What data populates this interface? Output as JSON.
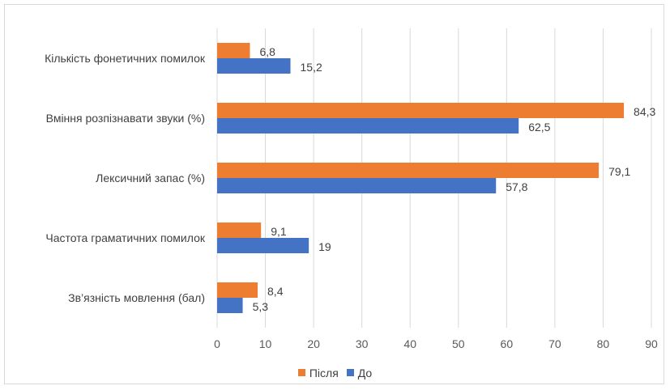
{
  "chart_data": {
    "type": "bar",
    "orientation": "horizontal",
    "categories": [
      "Кількість фонетичних помилок",
      "Вміння розпізнавати звуки (%)",
      "Лексичний запас (%)",
      "Частота граматичних помилок",
      "Зв’язність мовлення (бал)"
    ],
    "series": [
      {
        "name": "Після",
        "color": "#ed7d31",
        "values": [
          6.8,
          84.3,
          79.1,
          9.1,
          8.4
        ],
        "labels": [
          "6,8",
          "84,3",
          "79,1",
          "9,1",
          "8,4"
        ]
      },
      {
        "name": "До",
        "color": "#4472c4",
        "values": [
          15.2,
          62.5,
          57.8,
          19,
          5.3
        ],
        "labels": [
          "15,2",
          "62,5",
          "57,8",
          "19",
          "5,3"
        ]
      }
    ],
    "xlim": [
      0,
      90
    ],
    "xticks": [
      "0",
      "10",
      "20",
      "30",
      "40",
      "50",
      "60",
      "70",
      "80",
      "90"
    ],
    "grid": true,
    "legend": "bottom"
  }
}
